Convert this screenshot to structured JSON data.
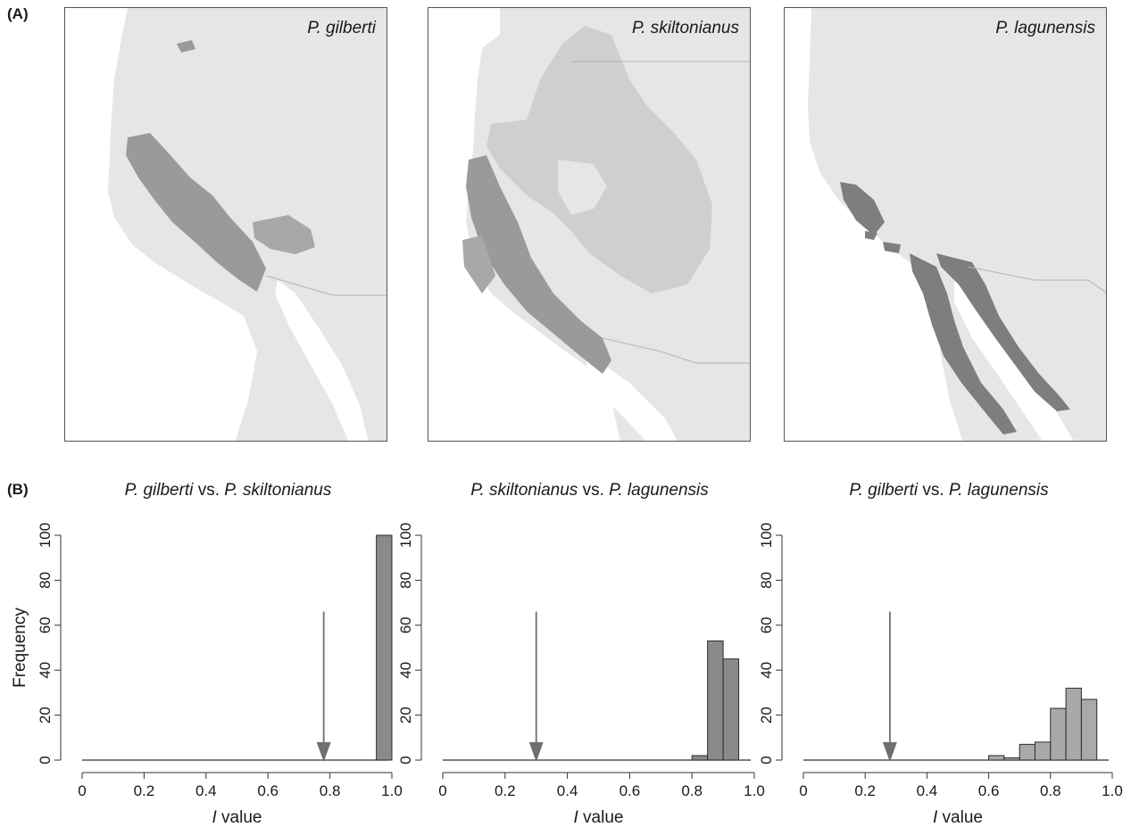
{
  "panel_labels": {
    "a": "(A)",
    "b": "(B)"
  },
  "maps": [
    {
      "title": "P. gilberti",
      "range_color": "#9a9a9b"
    },
    {
      "title": "P. skiltonianus",
      "range_color": "#9a9a9b"
    },
    {
      "title": "P. lagunensis",
      "range_color": "#7e7e7f"
    }
  ],
  "colors": {
    "land": "#e6e6e7",
    "sea": "#ffffff",
    "border": "#b3b3b3",
    "bar_dark": "#8a8a8c",
    "bar_light": "#a9a9ab",
    "arrow": "#6f6f6f"
  },
  "chart_data": [
    {
      "type": "bar",
      "title_parts": [
        "P. gilberti",
        " vs. ",
        "P. skiltonianus"
      ],
      "xlabel_parts": [
        "I",
        " value"
      ],
      "ylabel": "Frequency",
      "xlim": [
        0,
        1
      ],
      "ylim": [
        0,
        100
      ],
      "xticks": [
        "0",
        "0.2",
        "0.4",
        "0.6",
        "0.8",
        "1.0"
      ],
      "yticks": [
        "0",
        "20",
        "40",
        "60",
        "80",
        "100"
      ],
      "bin_width": 0.05,
      "bins": [
        0.95
      ],
      "values": [
        100
      ],
      "observed_I": 0.78,
      "bar_color": "#8a8a8c"
    },
    {
      "type": "bar",
      "title_parts": [
        "P. skiltonianus",
        " vs. ",
        "P. lagunensis"
      ],
      "xlabel_parts": [
        "I",
        " value"
      ],
      "ylabel": "",
      "xlim": [
        0,
        1
      ],
      "ylim": [
        0,
        100
      ],
      "xticks": [
        "0",
        "0.2",
        "0.4",
        "0.6",
        "0.8",
        "1.0"
      ],
      "yticks": [
        "0",
        "20",
        "40",
        "60",
        "80",
        "100"
      ],
      "bin_width": 0.05,
      "bins": [
        0.8,
        0.85,
        0.9
      ],
      "values": [
        2,
        53,
        45
      ],
      "observed_I": 0.3,
      "bar_color": "#8a8a8c"
    },
    {
      "type": "bar",
      "title_parts": [
        "P. gilberti",
        " vs. ",
        "P. lagunensis"
      ],
      "xlabel_parts": [
        "I",
        " value"
      ],
      "ylabel": "",
      "xlim": [
        0,
        1
      ],
      "ylim": [
        0,
        100
      ],
      "xticks": [
        "0",
        "0.2",
        "0.4",
        "0.6",
        "0.8",
        "1.0"
      ],
      "yticks": [
        "0",
        "20",
        "40",
        "60",
        "80",
        "100"
      ],
      "bin_width": 0.05,
      "bins": [
        0.6,
        0.65,
        0.7,
        0.75,
        0.8,
        0.85,
        0.9
      ],
      "values": [
        2,
        1,
        7,
        8,
        23,
        32,
        27
      ],
      "observed_I": 0.28,
      "bar_color": "#a9a9ab"
    }
  ]
}
